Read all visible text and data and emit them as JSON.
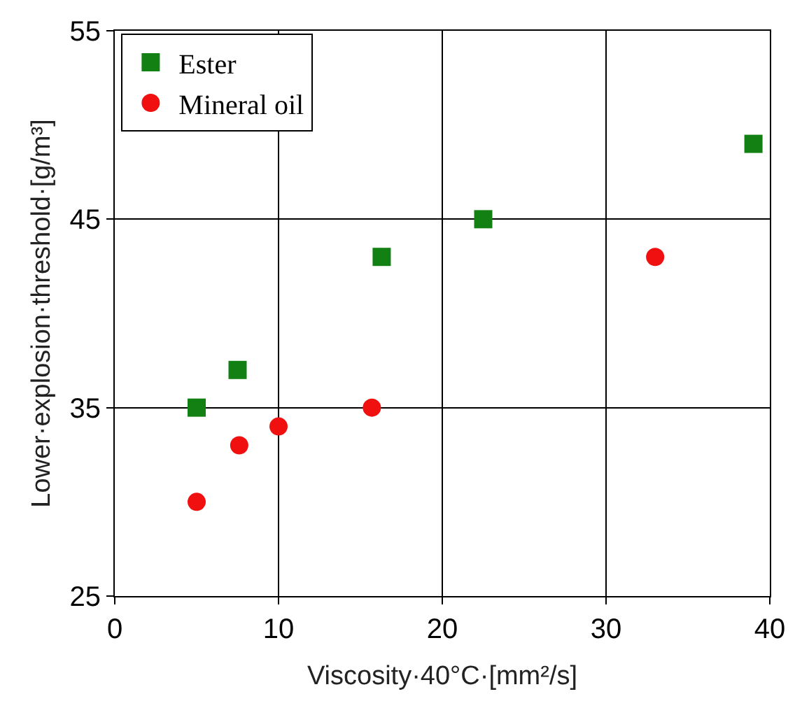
{
  "chart_data": {
    "type": "scatter",
    "xlabel": "Viscosity·40°C·[mm²/s]",
    "ylabel": "Lower·explosion·threshold·[g/m³]",
    "xlim": [
      0,
      40
    ],
    "xticks": [
      0,
      10,
      20,
      30,
      40
    ],
    "ylim": [
      25,
      55
    ],
    "yticks": [
      25,
      35,
      45,
      55
    ],
    "grid": true,
    "legend": "top left",
    "series": [
      {
        "name": "Ester",
        "color": "#138013",
        "marker": "square",
        "x": [
          5,
          7.5,
          16.3,
          22.5,
          39
        ],
        "values": [
          35,
          37,
          43,
          45,
          49
        ]
      },
      {
        "name": "Mineral oil",
        "color": "#f01010",
        "marker": "circle",
        "x": [
          5,
          7.6,
          10,
          15.7,
          33
        ],
        "values": [
          30,
          33,
          34,
          35,
          43
        ]
      }
    ]
  }
}
